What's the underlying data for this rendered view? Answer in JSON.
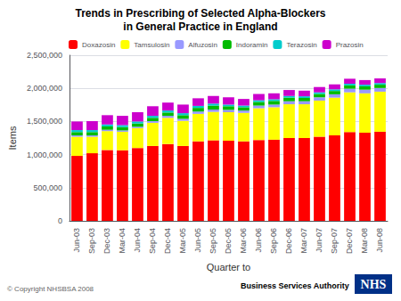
{
  "chart_data": {
    "type": "bar",
    "title": "Trends in Prescribing of Selected Alpha-Blockers",
    "subtitle": "in General Practice in England",
    "xlabel": "Quarter to",
    "ylabel": "Items",
    "categories": [
      "Jun-03",
      "Sep-03",
      "Dec-03",
      "Mar-04",
      "Jun-04",
      "Sep-04",
      "Dec-04",
      "Mar-05",
      "Jun-05",
      "Sep-05",
      "Dec-05",
      "Mar-06",
      "Jun-06",
      "Sep-06",
      "Dec-06",
      "Mar-07",
      "Jun-07",
      "Sep-07",
      "Dec-07",
      "Mar-08",
      "Jun-08"
    ],
    "series": [
      {
        "name": "Doxazosin",
        "color": "#FF0000",
        "values": [
          980000,
          1020000,
          1070000,
          1065000,
          1100000,
          1130000,
          1160000,
          1130000,
          1200000,
          1215000,
          1210000,
          1200000,
          1220000,
          1225000,
          1250000,
          1250000,
          1270000,
          1290000,
          1340000,
          1330000,
          1345000
        ]
      },
      {
        "name": "Tamsulosin",
        "color": "#FFFF00",
        "values": [
          290000,
          250000,
          285000,
          280000,
          300000,
          350000,
          395000,
          380000,
          415000,
          430000,
          430000,
          430000,
          480000,
          490000,
          510000,
          510000,
          545000,
          570000,
          600000,
          595000,
          605000
        ]
      },
      {
        "name": "Alfuzosin",
        "color": "#9999FF",
        "values": [
          20000,
          20000,
          20000,
          20000,
          20000,
          25000,
          30000,
          30000,
          35000,
          35000,
          35000,
          35000,
          40000,
          40000,
          45000,
          45000,
          50000,
          50000,
          55000,
          55000,
          55000
        ]
      },
      {
        "name": "Indoramin",
        "color": "#00BB00",
        "values": [
          50000,
          50000,
          50000,
          50000,
          50000,
          50000,
          50000,
          55000,
          55000,
          60000,
          55000,
          50000,
          55000,
          55000,
          55000,
          50000,
          50000,
          50000,
          50000,
          50000,
          50000
        ]
      },
      {
        "name": "Terazosin",
        "color": "#00CCCC",
        "values": [
          30000,
          30000,
          30000,
          30000,
          30000,
          30000,
          30000,
          30000,
          30000,
          30000,
          25000,
          25000,
          25000,
          25000,
          25000,
          25000,
          25000,
          25000,
          25000,
          25000,
          25000
        ]
      },
      {
        "name": "Prazosin",
        "color": "#CC00CC",
        "values": [
          130000,
          135000,
          140000,
          140000,
          140000,
          145000,
          120000,
          130000,
          115000,
          115000,
          110000,
          100000,
          95000,
          90000,
          90000,
          85000,
          80000,
          75000,
          75000,
          70000,
          70000
        ]
      }
    ],
    "stacked": true,
    "ylim": [
      0,
      2500000
    ],
    "yticks": [
      0,
      {
        "value": 500000,
        "label": "500,000"
      },
      {
        "value": 1000000,
        "label": "1,000,000"
      },
      {
        "value": 1500000,
        "label": "1,500,000"
      },
      {
        "value": 2000000,
        "label": "2,000,000"
      },
      {
        "value": 2500000,
        "label": "2,500,000"
      }
    ],
    "grid": true,
    "legend": "upper left",
    "annotations": [
      "© Copyright NHSBSA 2008",
      "NHS",
      "Business Services Authority"
    ]
  }
}
